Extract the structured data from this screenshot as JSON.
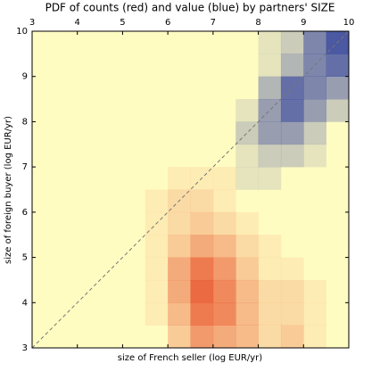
{
  "chart_data": {
    "type": "heatmap",
    "title": "PDF of counts (red) and value (blue) by partners' SIZE",
    "x_label": "size of French seller (log EUR/yr)",
    "y_label": "size of foreign buyer (log EUR/yr)",
    "xlim": [
      3,
      10
    ],
    "ylim": [
      3,
      10
    ],
    "xticks": [
      3,
      4,
      5,
      6,
      7,
      8,
      9,
      10
    ],
    "yticks": [
      3,
      4,
      5,
      6,
      7,
      8,
      9,
      10
    ],
    "background": "#fffcc2",
    "series": [
      {
        "color": "#e8502a",
        "values": [
          [
            0,
            0,
            0,
            0,
            0,
            0,
            3,
            6,
            5,
            4,
            2,
            3,
            1,
            0
          ],
          [
            0,
            0,
            0,
            0,
            0,
            1,
            4,
            8,
            7,
            4,
            2,
            2,
            1,
            0
          ],
          [
            0,
            0,
            0,
            0,
            0,
            1,
            5,
            9,
            7,
            4,
            2,
            2,
            1,
            0
          ],
          [
            0,
            0,
            0,
            0,
            0,
            1,
            5,
            8,
            6,
            3,
            1,
            1,
            0,
            0
          ],
          [
            0,
            0,
            0,
            0,
            0,
            1,
            3,
            5,
            4,
            2,
            1,
            0,
            0,
            0
          ],
          [
            0,
            0,
            0,
            0,
            0,
            1,
            2,
            3,
            2,
            1,
            0,
            0,
            0,
            0
          ],
          [
            0,
            0,
            0,
            0,
            0,
            1,
            2,
            2,
            1,
            0,
            0,
            0,
            0,
            0
          ],
          [
            0,
            0,
            0,
            0,
            0,
            0,
            1,
            1,
            1,
            0,
            0,
            0,
            0,
            0
          ],
          [
            0,
            0,
            0,
            0,
            0,
            0,
            0,
            0,
            0,
            0,
            0,
            0,
            0,
            0
          ],
          [
            0,
            0,
            0,
            0,
            0,
            0,
            0,
            0,
            0,
            0,
            0,
            0,
            0,
            0
          ],
          [
            0,
            0,
            0,
            0,
            0,
            0,
            0,
            0,
            0,
            0,
            0,
            0,
            0,
            0
          ],
          [
            0,
            0,
            0,
            0,
            0,
            0,
            0,
            0,
            0,
            0,
            0,
            0,
            0,
            0
          ],
          [
            0,
            0,
            0,
            0,
            0,
            0,
            0,
            0,
            0,
            0,
            0,
            0,
            0,
            0
          ],
          [
            0,
            0,
            0,
            0,
            0,
            0,
            0,
            0,
            0,
            0,
            0,
            0,
            0,
            0
          ]
        ]
      },
      {
        "color": "#2b3b9c",
        "values": [
          [
            0,
            0,
            0,
            0,
            0,
            0,
            0,
            0,
            0,
            0,
            0,
            0,
            0,
            0
          ],
          [
            0,
            0,
            0,
            0,
            0,
            0,
            0,
            0,
            0,
            0,
            0,
            0,
            0,
            0
          ],
          [
            0,
            0,
            0,
            0,
            0,
            0,
            0,
            0,
            0,
            0,
            0,
            0,
            0,
            0
          ],
          [
            0,
            0,
            0,
            0,
            0,
            0,
            0,
            0,
            0,
            0,
            0,
            0,
            0,
            0
          ],
          [
            0,
            0,
            0,
            0,
            0,
            0,
            0,
            0,
            0,
            0,
            0,
            0,
            0,
            0
          ],
          [
            0,
            0,
            0,
            0,
            0,
            0,
            0,
            0,
            0,
            0,
            0,
            0,
            0,
            0
          ],
          [
            0,
            0,
            0,
            0,
            0,
            0,
            0,
            0,
            0,
            0,
            0,
            0,
            0,
            0
          ],
          [
            0,
            0,
            0,
            0,
            0,
            0,
            0,
            0,
            0,
            1,
            1,
            0,
            0,
            0
          ],
          [
            0,
            0,
            0,
            0,
            0,
            0,
            0,
            0,
            0,
            1,
            2,
            2,
            1,
            0
          ],
          [
            0,
            0,
            0,
            0,
            0,
            0,
            0,
            0,
            0,
            2,
            4,
            4,
            2,
            0
          ],
          [
            0,
            0,
            0,
            0,
            0,
            0,
            0,
            0,
            0,
            1,
            4,
            6,
            4,
            2
          ],
          [
            0,
            0,
            0,
            0,
            0,
            0,
            0,
            0,
            0,
            0,
            3,
            6,
            5,
            4
          ],
          [
            0,
            0,
            0,
            0,
            0,
            0,
            0,
            0,
            0,
            0,
            1,
            3,
            5,
            6
          ],
          [
            0,
            0,
            0,
            0,
            0,
            0,
            0,
            0,
            0,
            0,
            1,
            2,
            5,
            7
          ]
        ]
      }
    ]
  }
}
